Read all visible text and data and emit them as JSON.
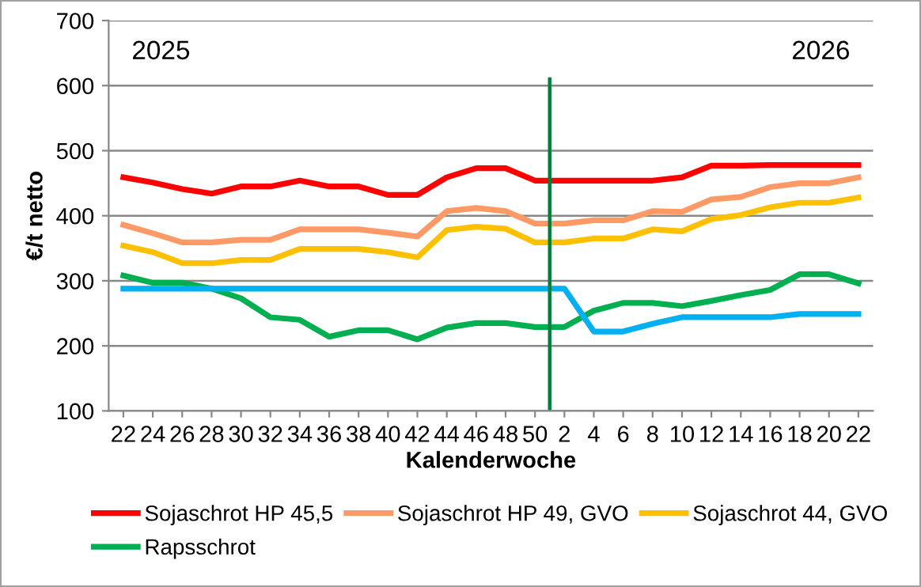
{
  "chart_data": {
    "type": "line",
    "xlabel": "Kalenderwoche",
    "ylabel": "€/t netto",
    "categories": [
      "22",
      "24",
      "26",
      "28",
      "30",
      "32",
      "34",
      "36",
      "38",
      "40",
      "42",
      "44",
      "46",
      "48",
      "50",
      "2",
      "4",
      "6",
      "8",
      "10",
      "12",
      "14",
      "16",
      "18",
      "20",
      "22"
    ],
    "series": [
      {
        "name": "Sojaschrot HP 45,5",
        "color": "#ff0000",
        "values": [
          459,
          451,
          441,
          434,
          445,
          445,
          454,
          445,
          445,
          432,
          432,
          459,
          473,
          473,
          454,
          454,
          454,
          454,
          454,
          459,
          477,
          477,
          478,
          478,
          478,
          478
        ]
      },
      {
        "name": "Sojaschrot HP 49, GVO",
        "color": "#ff9966",
        "values": [
          386,
          373,
          359,
          359,
          363,
          363,
          379,
          379,
          379,
          374,
          368,
          407,
          412,
          407,
          388,
          388,
          393,
          393,
          407,
          406,
          425,
          429,
          444,
          450,
          450,
          459
        ]
      },
      {
        "name": "Sojaschrot 44, GVO",
        "color": "#ffc000",
        "values": [
          354,
          344,
          327,
          327,
          332,
          332,
          349,
          349,
          349,
          344,
          336,
          378,
          383,
          380,
          359,
          359,
          365,
          365,
          379,
          376,
          395,
          401,
          413,
          420,
          420,
          428
        ]
      },
      {
        "name": "Rapsschrot",
        "color": "#00b050",
        "values": [
          308,
          297,
          297,
          288,
          273,
          244,
          240,
          214,
          224,
          224,
          210,
          228,
          235,
          235,
          229,
          229,
          254,
          266,
          266,
          261,
          269,
          278,
          286,
          310,
          310,
          296
        ]
      },
      {
        "color": "#00b0f0",
        "values": [
          288,
          288,
          288,
          288,
          288,
          288,
          288,
          288,
          288,
          288,
          288,
          288,
          288,
          288,
          288,
          288,
          222,
          222,
          234,
          244,
          244,
          244,
          244,
          249,
          249,
          249
        ]
      }
    ],
    "ylim": [
      100,
      700
    ],
    "yticks": [
      100,
      200,
      300,
      400,
      500,
      600,
      700
    ],
    "grid": "y",
    "legend": "bottom",
    "ref_lines": [
      {
        "axis": "x",
        "value": "2",
        "color": "#00803c"
      }
    ],
    "annotations": [
      "2025",
      "2026"
    ]
  }
}
